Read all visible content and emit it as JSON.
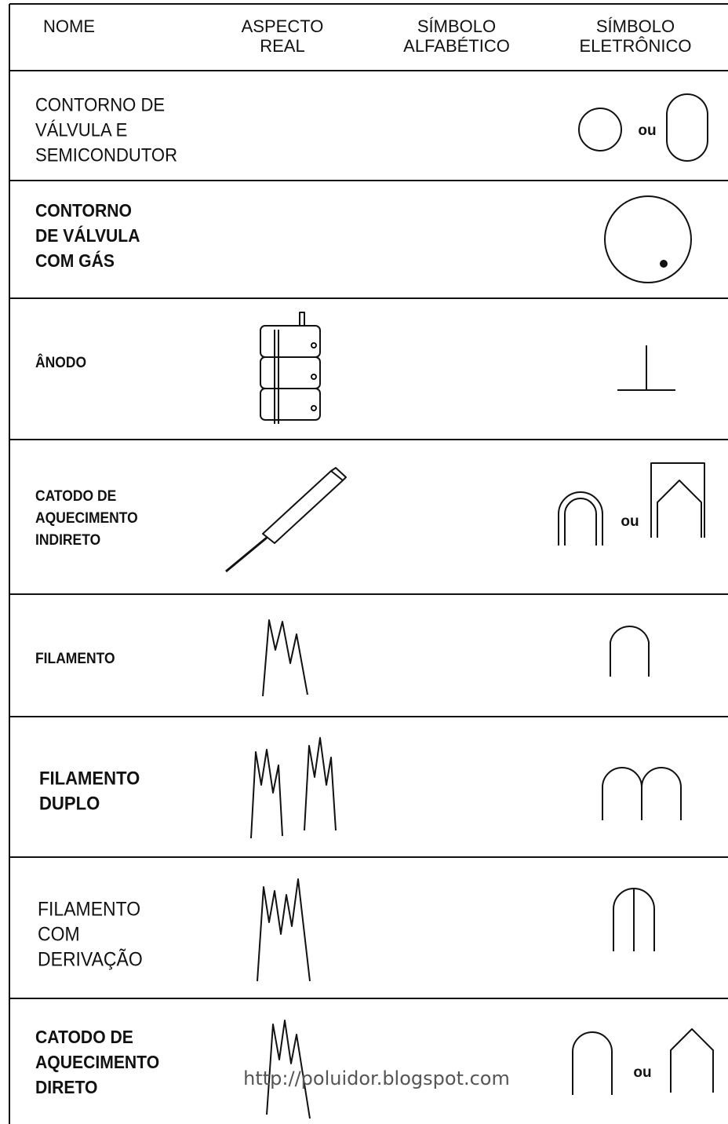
{
  "header": {
    "columns": [
      [
        "NOME"
      ],
      [
        "ASPECTO",
        "REAL"
      ],
      [
        "SÍMBOLO",
        "ALFABÉTICO"
      ],
      [
        "SÍMBOLO",
        "ELETRÔNICO"
      ]
    ]
  },
  "rows": [
    {
      "name": [
        "CONTORNO DE",
        "VÁLVULA E",
        "SEMICONDUTOR"
      ],
      "or": "ou"
    },
    {
      "name": [
        "CONTORNO",
        "DE VÁLVULA",
        "COM GÁS"
      ]
    },
    {
      "name": [
        "ÂNODO"
      ]
    },
    {
      "name": [
        "CATODO DE",
        "AQUECIMENTO",
        "INDIRETO"
      ],
      "or": "ou"
    },
    {
      "name": [
        "FILAMENTO"
      ]
    },
    {
      "name": [
        "FILAMENTO",
        "DUPLO"
      ]
    },
    {
      "name": [
        "FILAMENTO",
        "COM",
        "DERIVAÇÃO"
      ]
    },
    {
      "name": [
        "CATODO DE",
        "AQUECIMENTO",
        "DIRETO"
      ],
      "or": "ou"
    }
  ],
  "watermark": "http://poluidor.blogspot.com"
}
